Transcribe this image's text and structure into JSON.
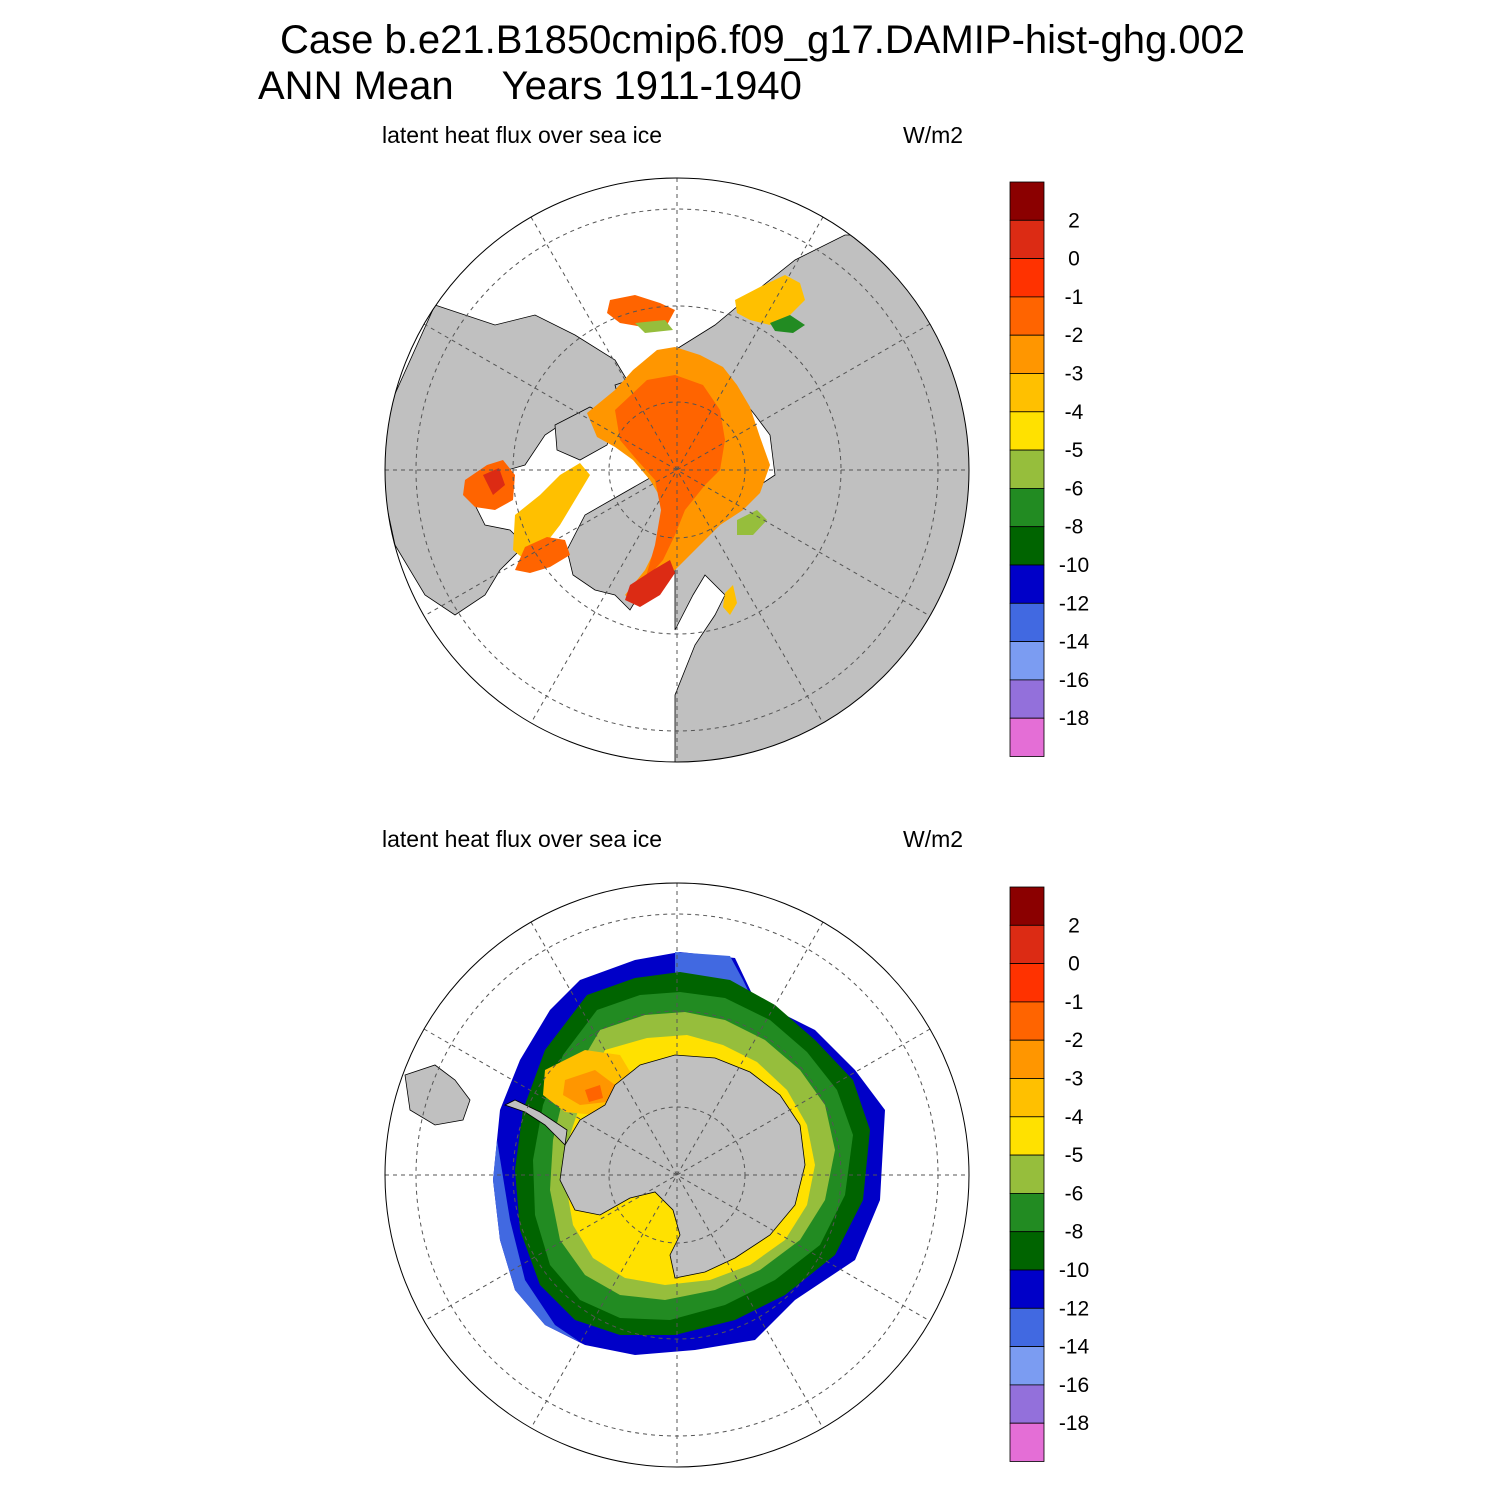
{
  "header": {
    "case_title": "Case b.e21.B1850cmip6.f09_g17.DAMIP-hist-ghg.002",
    "season": "ANN Mean",
    "years": "Years 1911-1940"
  },
  "panels": [
    {
      "id": "nh",
      "hemisphere": "north",
      "variable_label": "latent heat flux over sea ice",
      "units": "W/m2"
    },
    {
      "id": "sh",
      "hemisphere": "south",
      "variable_label": "latent heat flux over sea ice",
      "units": "W/m2"
    }
  ],
  "colorbar": {
    "colors": [
      "#e46ed6",
      "#9370db",
      "#7b9cf2",
      "#4169e1",
      "#0000c8",
      "#006400",
      "#228b22",
      "#96be3c",
      "#ffe100",
      "#ffc000",
      "#ff9600",
      "#ff6400",
      "#ff3200",
      "#dc2b14",
      "#8b0000"
    ],
    "labels": [
      "-18",
      "-16",
      "-14",
      "-12",
      "-10",
      "-8",
      "-6",
      "-5",
      "-4",
      "-3",
      "-2",
      "-1",
      "0",
      "2"
    ]
  },
  "map_style": {
    "land_color": "#c0c0c0",
    "ocean_color": "#ffffff",
    "grid_color": "#555555"
  }
}
